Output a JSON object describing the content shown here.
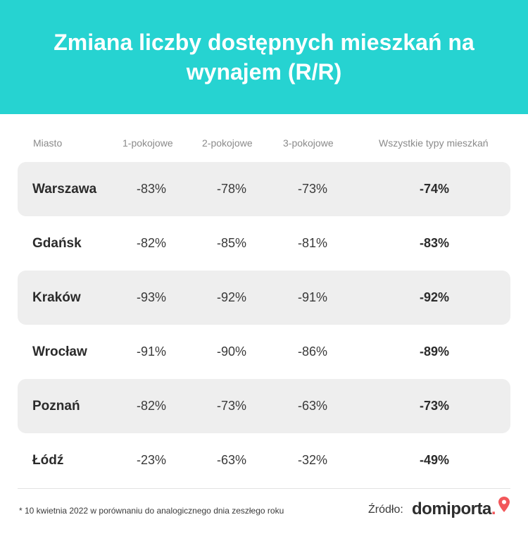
{
  "header": {
    "title": "Zmiana liczby dostępnych mieszkań na wynajem (R/R)"
  },
  "chart_data": {
    "type": "table",
    "title": "Zmiana liczby dostępnych mieszkań na wynajem (R/R)",
    "columns": [
      "Miasto",
      "1-pokojowe",
      "2-pokojowe",
      "3-pokojowe",
      "Wszystkie typy mieszkań"
    ],
    "rows": [
      {
        "city": "Warszawa",
        "one": "-83%",
        "two": "-78%",
        "three": "-73%",
        "all": "-74%"
      },
      {
        "city": "Gdańsk",
        "one": "-82%",
        "two": "-85%",
        "three": "-81%",
        "all": "-83%"
      },
      {
        "city": "Kraków",
        "one": "-93%",
        "two": "-92%",
        "three": "-91%",
        "all": "-92%"
      },
      {
        "city": "Wrocław",
        "one": "-91%",
        "two": "-90%",
        "three": "-86%",
        "all": "-89%"
      },
      {
        "city": "Poznań",
        "one": "-82%",
        "two": "-73%",
        "three": "-63%",
        "all": "-73%"
      },
      {
        "city": "Łódź",
        "one": "-23%",
        "two": "-63%",
        "three": "-32%",
        "all": "-49%"
      }
    ]
  },
  "footer": {
    "footnote": "* 10 kwietnia 2022 w porównaniu do analogicznego dnia zeszłego roku",
    "source_label": "Źródło:",
    "logo_text": "domiporta",
    "logo_dot": "."
  },
  "colors": {
    "header_bg": "#26d3d1",
    "row_shade": "#eeeeee",
    "logo_accent": "#f2575a"
  },
  "icons": {
    "logo_pin": "map-pin-icon"
  }
}
